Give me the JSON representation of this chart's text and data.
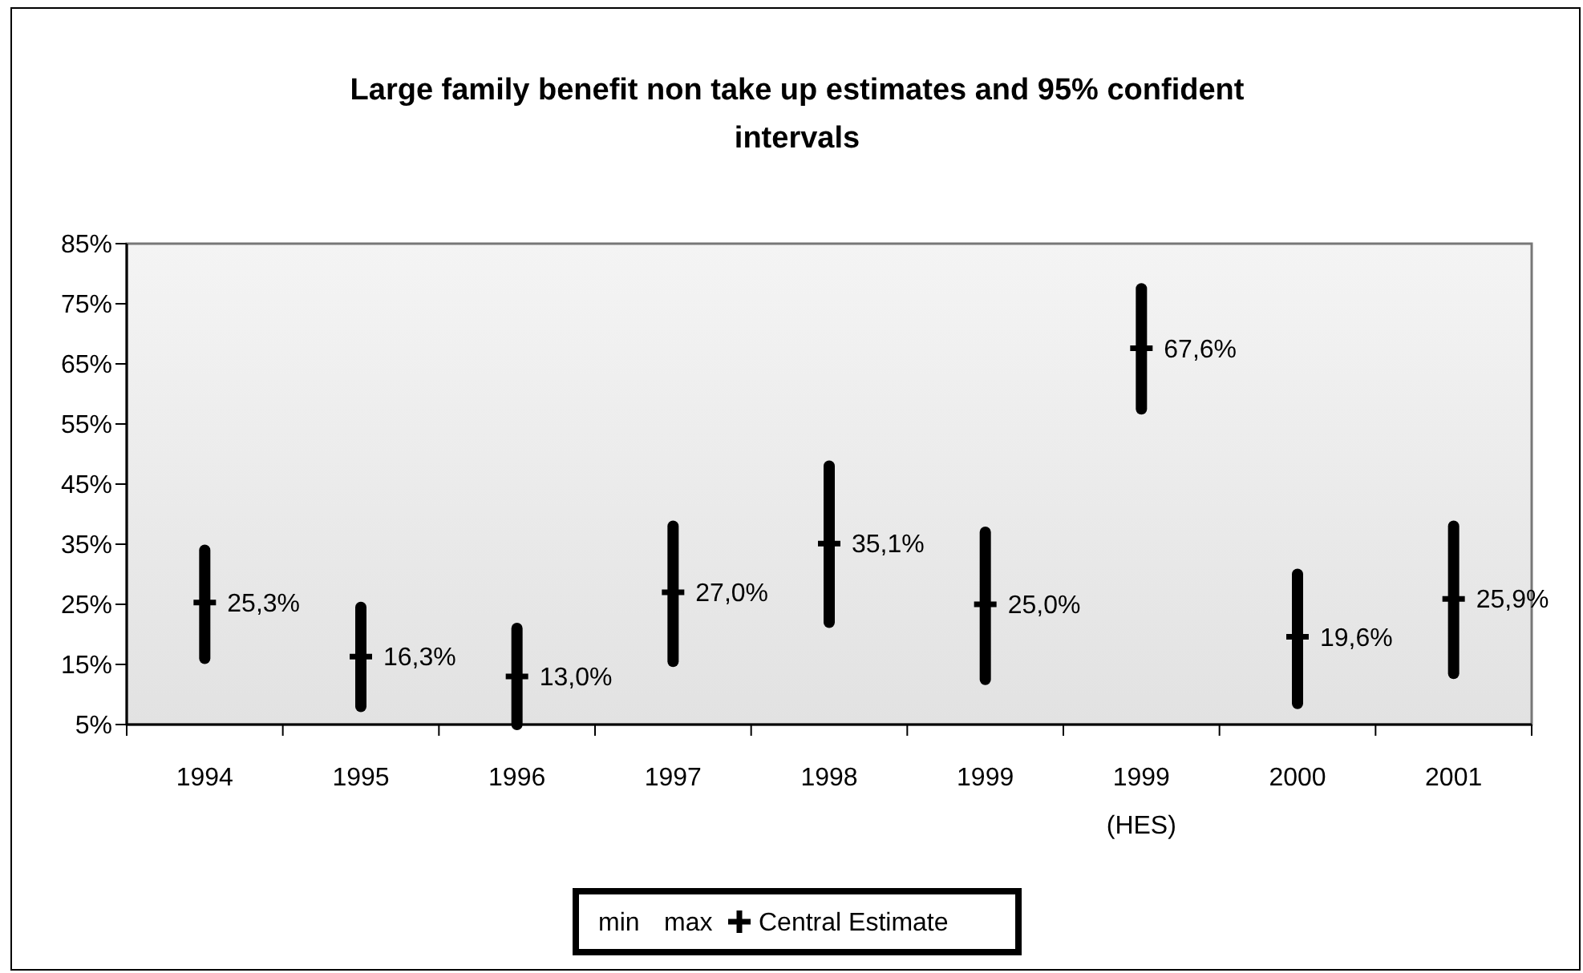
{
  "chart_data": {
    "type": "scatter",
    "title": "Large family benefit non take up estimates and 95% confident intervals",
    "categories": [
      "1994",
      "1995",
      "1996",
      "1997",
      "1998",
      "1999",
      "1999 (HES)",
      "2000",
      "2001"
    ],
    "ylim": [
      5,
      85
    ],
    "yticks": [
      {
        "value": 5,
        "label": "5%"
      },
      {
        "value": 15,
        "label": "15%"
      },
      {
        "value": 25,
        "label": "25%"
      },
      {
        "value": 35,
        "label": "35%"
      },
      {
        "value": 45,
        "label": "45%"
      },
      {
        "value": 55,
        "label": "55%"
      },
      {
        "value": 65,
        "label": "65%"
      },
      {
        "value": 75,
        "label": "75%"
      },
      {
        "value": 85,
        "label": "85%"
      }
    ],
    "grid": false,
    "legend": "bottom",
    "series": [
      {
        "name": "min",
        "color": "#000000",
        "marker": "none",
        "values": [
          null,
          null,
          null,
          null,
          null,
          null,
          null,
          null,
          null
        ]
      },
      {
        "name": "max",
        "color": "#000000",
        "marker": "none",
        "values": [
          null,
          null,
          null,
          null,
          null,
          null,
          null,
          null,
          null
        ]
      },
      {
        "name": "Central Estimate",
        "color": "#000000",
        "values": [
          25.3,
          16.3,
          13.0,
          27.0,
          35.1,
          25.0,
          67.6,
          19.6,
          25.9
        ],
        "errors": [
          [
            16,
            34
          ],
          [
            8,
            24.5
          ],
          [
            5,
            21
          ],
          [
            15.5,
            38
          ],
          [
            22,
            48
          ],
          [
            12.5,
            37
          ],
          [
            57.5,
            77.5
          ],
          [
            8.5,
            30
          ],
          [
            13.5,
            38
          ]
        ],
        "value_labels": [
          "25,3%",
          "16,3%",
          "13,0%",
          "27,0%",
          "35,1%",
          "25,0%",
          "67,6%",
          "19,6%",
          "25,9%"
        ]
      }
    ]
  }
}
